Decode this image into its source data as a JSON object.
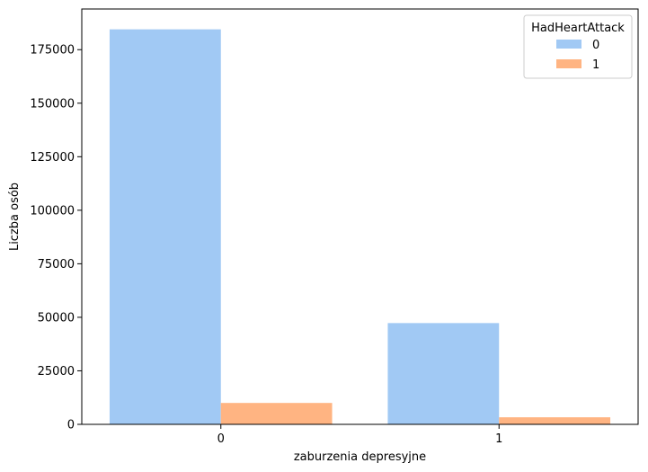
{
  "chart_data": {
    "type": "bar",
    "xlabel": "zaburzenia depresyjne",
    "ylabel": "Liczba osób",
    "categories": [
      "0",
      "1"
    ],
    "ylim": [
      0,
      194000
    ],
    "yticks": [
      0,
      25000,
      50000,
      75000,
      100000,
      125000,
      150000,
      175000
    ],
    "ytick_labels": [
      "0",
      "25000",
      "50000",
      "75000",
      "100000",
      "125000",
      "150000",
      "175000"
    ],
    "grid": false,
    "legend": {
      "title": "HadHeartAttack",
      "placement": "top-right"
    },
    "series": [
      {
        "name": "0",
        "color": "#a1c9f4",
        "values": [
          184500,
          47300
        ]
      },
      {
        "name": "1",
        "color": "#ffb482",
        "values": [
          10000,
          3300
        ]
      }
    ]
  }
}
